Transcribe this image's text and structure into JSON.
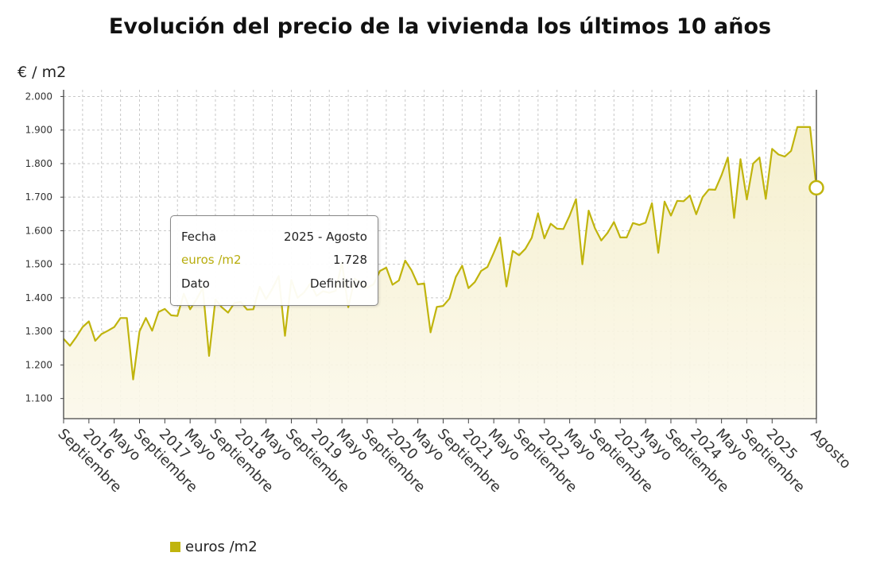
{
  "chart_data": {
    "type": "area",
    "title": "Evolución del precio de la vivienda los últimos 10 años",
    "ylabel": "€ / m2",
    "xlabel": "",
    "ylim": [
      1040,
      2020
    ],
    "yticks": [
      1100,
      1200,
      1300,
      1400,
      1500,
      1600,
      1700,
      1800,
      1900,
      2000
    ],
    "ytick_labels": [
      "1.100",
      "1.200",
      "1.300",
      "1.400",
      "1.500",
      "1.600",
      "1.700",
      "1.800",
      "1.900",
      "2.000"
    ],
    "grid": true,
    "legend_position": "bottom-left",
    "start": "2015 - Septiembre",
    "end": "2025 - Agosto",
    "x_ticks": [
      {
        "index": 0,
        "label": "Septiembre"
      },
      {
        "index": 4,
        "label": "2016"
      },
      {
        "index": 8,
        "label": "Mayo"
      },
      {
        "index": 12,
        "label": "Septiembre"
      },
      {
        "index": 16,
        "label": "2017"
      },
      {
        "index": 20,
        "label": "Mayo"
      },
      {
        "index": 24,
        "label": "Septiembre"
      },
      {
        "index": 28,
        "label": "2018"
      },
      {
        "index": 32,
        "label": "Mayo"
      },
      {
        "index": 36,
        "label": "Septiembre"
      },
      {
        "index": 40,
        "label": "2019"
      },
      {
        "index": 44,
        "label": "Mayo"
      },
      {
        "index": 48,
        "label": "Septiembre"
      },
      {
        "index": 52,
        "label": "2020"
      },
      {
        "index": 56,
        "label": "Mayo"
      },
      {
        "index": 60,
        "label": "Septiembre"
      },
      {
        "index": 64,
        "label": "2021"
      },
      {
        "index": 68,
        "label": "Mayo"
      },
      {
        "index": 72,
        "label": "Septiembre"
      },
      {
        "index": 76,
        "label": "2022"
      },
      {
        "index": 80,
        "label": "Mayo"
      },
      {
        "index": 84,
        "label": "Septiembre"
      },
      {
        "index": 88,
        "label": "2023"
      },
      {
        "index": 92,
        "label": "Mayo"
      },
      {
        "index": 96,
        "label": "Septiembre"
      },
      {
        "index": 100,
        "label": "2024"
      },
      {
        "index": 104,
        "label": "Mayo"
      },
      {
        "index": 108,
        "label": "Septiembre"
      },
      {
        "index": 112,
        "label": "2025"
      },
      {
        "index": 119,
        "label": "Agosto"
      }
    ],
    "series": [
      {
        "name": "euros /m2",
        "color": "#c0b40d",
        "values": [
          1278,
          1257,
          1283,
          1313,
          1330,
          1272,
          1292,
          1302,
          1313,
          1340,
          1340,
          1157,
          1300,
          1340,
          1302,
          1358,
          1367,
          1348,
          1346,
          1412,
          1366,
          1395,
          1430,
          1227,
          1395,
          1372,
          1356,
          1385,
          1388,
          1365,
          1366,
          1433,
          1396,
          1427,
          1465,
          1287,
          1453,
          1400,
          1416,
          1443,
          1406,
          1420,
          1415,
          1421,
          1505,
          1372,
          1457,
          1444,
          1430,
          1440,
          1480,
          1490,
          1439,
          1452,
          1511,
          1482,
          1440,
          1443,
          1297,
          1373,
          1376,
          1398,
          1462,
          1496,
          1429,
          1447,
          1480,
          1492,
          1534,
          1580,
          1434,
          1540,
          1527,
          1546,
          1579,
          1652,
          1577,
          1621,
          1606,
          1605,
          1645,
          1694,
          1500,
          1660,
          1607,
          1571,
          1594,
          1626,
          1580,
          1580,
          1623,
          1617,
          1624,
          1682,
          1534,
          1687,
          1645,
          1689,
          1688,
          1705,
          1649,
          1700,
          1723,
          1722,
          1765,
          1818,
          1638,
          1813,
          1693,
          1800,
          1818,
          1695,
          1844,
          1827,
          1821,
          1838,
          1909,
          1909,
          1909,
          1728
        ]
      }
    ]
  },
  "tooltip": {
    "fecha_label": "Fecha",
    "fecha_value": "2025 - Agosto",
    "series_label": "euros /m2",
    "series_value": "1.728",
    "dato_label": "Dato",
    "dato_value": "Definitivo"
  },
  "legend": {
    "label": "euros /m2",
    "color": "#c0b40d"
  }
}
